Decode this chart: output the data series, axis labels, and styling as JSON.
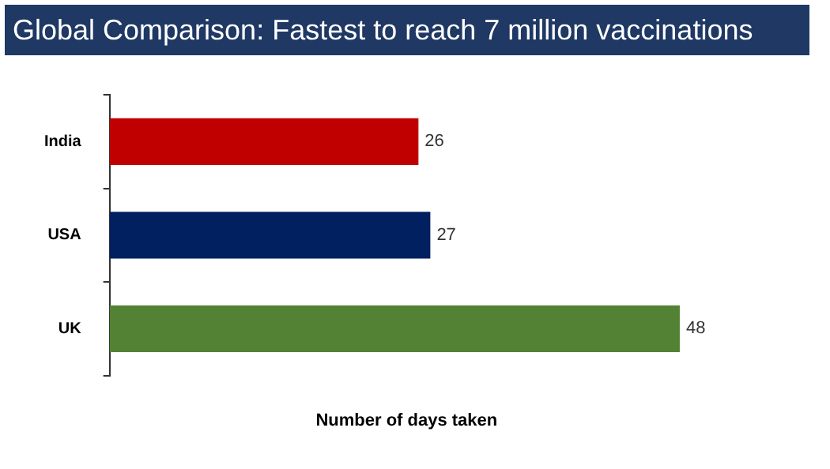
{
  "chart_data": {
    "type": "bar",
    "orientation": "horizontal",
    "title": "Global Comparison: Fastest to reach 7 million vaccinations",
    "xlabel": "Number of days taken",
    "categories": [
      "India",
      "USA",
      "UK"
    ],
    "values": [
      26,
      27,
      48
    ],
    "colors": [
      "#c00000",
      "#002060",
      "#548235"
    ],
    "data_labels": true,
    "grid": false,
    "legend": false
  }
}
